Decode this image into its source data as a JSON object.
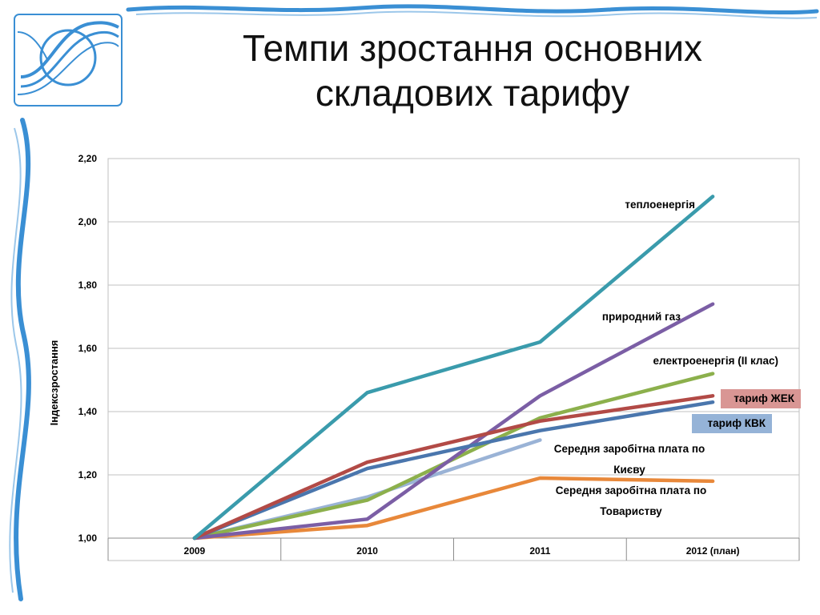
{
  "slide": {
    "title_line1": "Темпи зростання основних",
    "title_line2": "складових тарифу",
    "accent_color": "#3a8fd4"
  },
  "chart_data": {
    "type": "line",
    "title": "",
    "xlabel": "",
    "ylabel": "Індексзростання",
    "categories": [
      "2009",
      "2010",
      "2011",
      "2012 (план)"
    ],
    "ylim": [
      1.0,
      2.2
    ],
    "yticks": [
      "1,00",
      "1,20",
      "1,40",
      "1,60",
      "1,80",
      "2,00",
      "2,20"
    ],
    "grid": "horizontal",
    "series": [
      {
        "name": "теплоенергія",
        "color": "#3a9bac",
        "values": [
          1.0,
          1.46,
          1.62,
          2.08
        ]
      },
      {
        "name": "природний газ",
        "color": "#7b5ea5",
        "values": [
          1.0,
          1.06,
          1.45,
          1.74
        ]
      },
      {
        "name": "електроенергія (ІІ клас)",
        "color": "#8cb04c",
        "values": [
          1.0,
          1.12,
          1.38,
          1.52
        ]
      },
      {
        "name": "тариф ЖЕК",
        "color": "#b24a46",
        "label_bg": "#d99694",
        "values": [
          1.0,
          1.24,
          1.37,
          1.45
        ]
      },
      {
        "name": "тариф КВК",
        "color": "#4a76ad",
        "label_bg": "#95b3d7",
        "values": [
          1.0,
          1.22,
          1.34,
          1.43
        ]
      },
      {
        "name": "Середня заробітна плата по Києву",
        "label_lines": [
          "Середня заробітна плата по",
          "Києву"
        ],
        "color": "#9ab3d6",
        "values": [
          1.0,
          1.13,
          1.31,
          null
        ]
      },
      {
        "name": "Середня заробітна плата по Товариству",
        "label_lines": [
          "Середня заробітна плата по",
          "Товариству"
        ],
        "color": "#e8883a",
        "values": [
          1.0,
          1.04,
          1.19,
          1.18
        ]
      }
    ]
  }
}
